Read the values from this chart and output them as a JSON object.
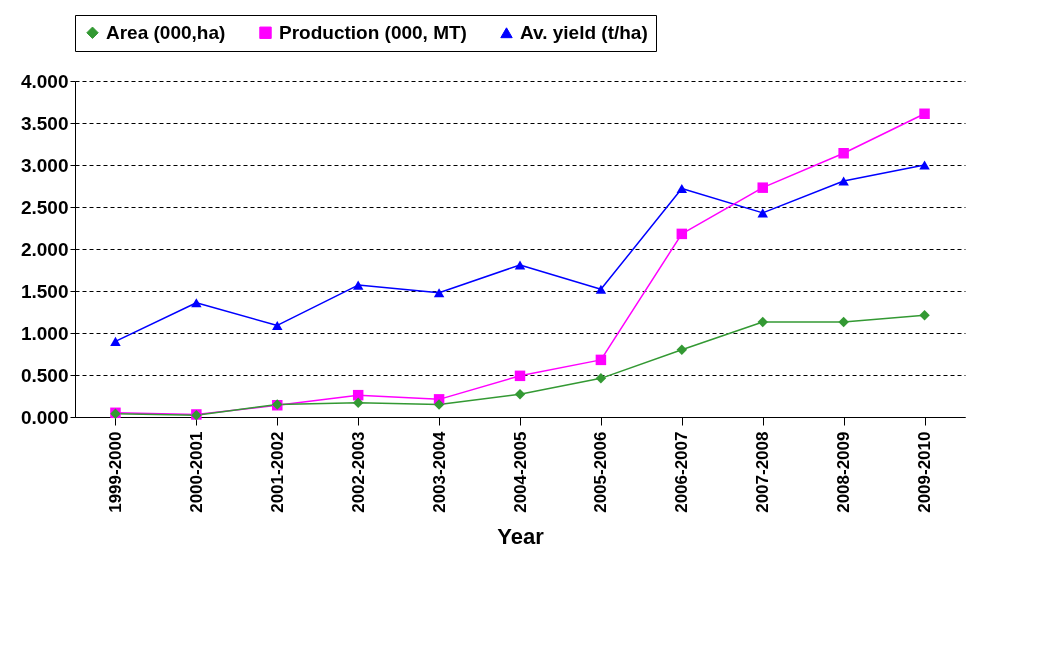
{
  "chart_data": {
    "type": "line",
    "xlabel": "Year",
    "categories": [
      "1999-2000",
      "2000-2001",
      "2001-2002",
      "2002-2003",
      "2003-2004",
      "2004-2005",
      "2005-2006",
      "2006-2007",
      "2007-2008",
      "2008-2009",
      "2009-2010"
    ],
    "series": [
      {
        "name": "Area (000,ha)",
        "color": "#339933",
        "marker": "diamond",
        "values": [
          0.04,
          0.02,
          0.15,
          0.17,
          0.15,
          0.27,
          0.46,
          0.8,
          1.13,
          1.13,
          1.21
        ]
      },
      {
        "name": "Production (000, MT)",
        "color": "#ff00ff",
        "marker": "square",
        "values": [
          0.05,
          0.03,
          0.14,
          0.26,
          0.21,
          0.49,
          0.68,
          2.18,
          2.73,
          3.14,
          3.61
        ]
      },
      {
        "name": "Av. yield (t/ha)",
        "color": "#0000ff",
        "marker": "triangle",
        "values": [
          0.9,
          1.36,
          1.09,
          1.57,
          1.48,
          1.81,
          1.52,
          2.72,
          2.43,
          2.81,
          3.0
        ]
      }
    ],
    "ylim": [
      0,
      4
    ],
    "yticks": [
      {
        "value": 0,
        "label": "0.000"
      },
      {
        "value": 0.5,
        "label": "0.500"
      },
      {
        "value": 1,
        "label": "1.000"
      },
      {
        "value": 1.5,
        "label": "1.500"
      },
      {
        "value": 2,
        "label": "2.000"
      },
      {
        "value": 2.5,
        "label": "2.500"
      },
      {
        "value": 3,
        "label": "3.000"
      },
      {
        "value": 3.5,
        "label": "3.500"
      },
      {
        "value": 4,
        "label": "4.000"
      }
    ],
    "grid": "y",
    "legend": "top",
    "line_style": "solid"
  }
}
